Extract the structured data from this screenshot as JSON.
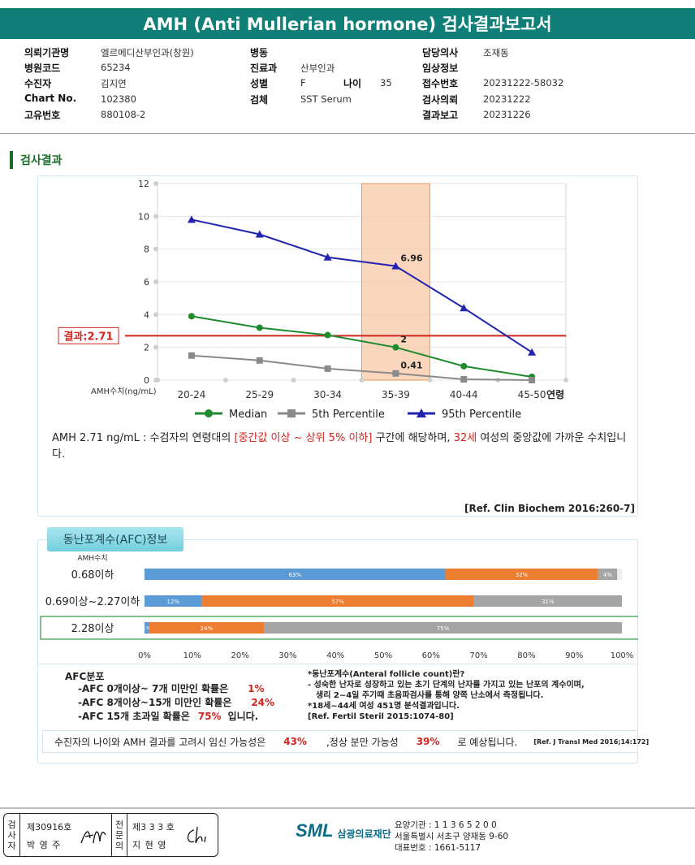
{
  "title": "AMH (Anti Mullerian hormone) 검사결과보고서",
  "info": {
    "col1": [
      {
        "label": "의뢰기관명",
        "value": "엘르메디산부인과(창원)"
      },
      {
        "label": "병원코드",
        "value": "65234"
      },
      {
        "label": "수진자",
        "value": "김지연"
      },
      {
        "label": "Chart No.",
        "value": "102380"
      },
      {
        "label": "고유번호",
        "value": "880108-2"
      }
    ],
    "col2": [
      {
        "label": "병동",
        "value": ""
      },
      {
        "label": "진료과",
        "value": "산부인과"
      },
      {
        "label": "성별",
        "value": "F"
      },
      {
        "label": "검체",
        "value": "SST Serum"
      }
    ],
    "age_label": "나이",
    "age_value": "35",
    "col3": [
      {
        "label": "담당의사",
        "value": "조재동"
      },
      {
        "label": "임상정보",
        "value": ""
      },
      {
        "label": "접수번호",
        "value": "20231222-58032"
      },
      {
        "label": "검사의뢰",
        "value": "20231222"
      },
      {
        "label": "결과보고",
        "value": "20231226"
      }
    ]
  },
  "section_title": "검사결과",
  "chart_data": {
    "type": "line",
    "categories": [
      "20-24",
      "25-29",
      "30-34",
      "35-39",
      "40-44",
      "45-50"
    ],
    "xlabel_suffix": "연령",
    "ylabel": "AMH수치(ng/mL)",
    "ylim": [
      0,
      12
    ],
    "yticks": [
      0,
      2,
      4,
      6,
      8,
      10,
      12
    ],
    "grid": true,
    "highlight_category": "35-39",
    "result_line": {
      "value": 2.71,
      "label": "결과:2.71",
      "color": "#d0261f"
    },
    "series": [
      {
        "name": "Median",
        "color": "#1f8a2e",
        "marker": "circle",
        "values": [
          3.9,
          3.2,
          2.75,
          2.0,
          0.85,
          0.2
        ]
      },
      {
        "name": "5th Percentile",
        "color": "#8a8a8a",
        "marker": "square",
        "values": [
          1.5,
          1.2,
          0.7,
          0.41,
          0.05,
          0.0
        ]
      },
      {
        "name": "95th Percentile",
        "color": "#2224b0",
        "marker": "triangle",
        "values": [
          9.8,
          8.9,
          7.5,
          6.96,
          4.4,
          1.7
        ]
      }
    ],
    "data_labels": [
      {
        "series": 2,
        "index": 3,
        "text": "6.96"
      },
      {
        "series": 0,
        "index": 3,
        "text": "2"
      },
      {
        "series": 1,
        "index": 3,
        "text": "0.41"
      }
    ],
    "legend_position": "bottom"
  },
  "result_text": {
    "p1": "AMH  2.71 ng/mL : 수검자의 연령대의 ",
    "p2": "[중간값 이상 ~ 상위 5% 이하]",
    "p3": " 구간에 해당하며, ",
    "p4": "32세",
    "p5": " 여성의 중앙값에 가까운 수치입니다."
  },
  "ref1": "[Ref. Clin Biochem 2016:260-7]",
  "afc_title": "동난포계수(AFC)정보",
  "afc_chart": {
    "row_header": "AMH수치",
    "rows": [
      {
        "label": "0.68이하",
        "segments": [
          63,
          32,
          4
        ],
        "texts": [
          "63%",
          "32%",
          "4%"
        ]
      },
      {
        "label": "0.69이상~2.27이하",
        "segments": [
          12,
          57,
          31
        ],
        "texts": [
          "12%",
          "57%",
          "31%"
        ]
      },
      {
        "label": "2.28이상",
        "segments": [
          1,
          24,
          75
        ],
        "texts": [
          "1%",
          "24%",
          "75%"
        ],
        "highlight": true
      }
    ],
    "colors": [
      "#5b9bd5",
      "#ed7d31",
      "#a5a5a5"
    ],
    "axis_ticks": [
      "0%",
      "10%",
      "20%",
      "30%",
      "40%",
      "50%",
      "60%",
      "70%",
      "80%",
      "90%",
      "100%"
    ]
  },
  "afc_dist": {
    "title": "AFC분포",
    "lines": [
      {
        "pre": "-AFC  0개이상~ 7개 미만인 확률은",
        "val": "1%",
        "post": ""
      },
      {
        "pre": "-AFC  8개이상~15개 미만인 확률은",
        "val": "24%",
        "post": ""
      },
      {
        "pre": "-AFC  15개 초과일 확률은",
        "val": "75%",
        "post": "입니다."
      }
    ]
  },
  "afc_def": {
    "l1": "*동난포계수(Anteral follicle count)란?",
    "l2": "- 성숙한 난자로 성장하고 있는 초기 단계의 난자를 가지고 있는 난포의 계수이며,",
    "l3": "생리 2~4일 주기때 초음파검사를 통해 양쪽 난소에서 측정됩니다.",
    "l4": "*18세~44세 여성 451명 분석결과입니다.",
    "l5": "[Ref. Fertil Steril 2015:1074-80]"
  },
  "pregnancy": {
    "t1": "수진자의  나이와 AMH 결과를 고려시 임신 가능성은",
    "v1": "43%",
    "t2": ",정상 분만 가능성",
    "v2": "39%",
    "t3": "로 예상됩니다.",
    "ref": "[Ref. J Transl Med 2016;14:172]"
  },
  "signature": {
    "label1": [
      "검",
      "사",
      "자"
    ],
    "no1": "제30916호",
    "name1": "박 영 주",
    "label2": [
      "전",
      "문",
      "의"
    ],
    "no2": "제3 3 3 호",
    "name2": "지 현 영"
  },
  "lab": {
    "logo": "SML",
    "name": "삼광의료재단",
    "l1": "요양기관 : 1 1 3 6 5 2 0 0",
    "l2": "서울특별시 서초구 양재동 9-60",
    "l3": "대표번호 : 1661-5117"
  }
}
